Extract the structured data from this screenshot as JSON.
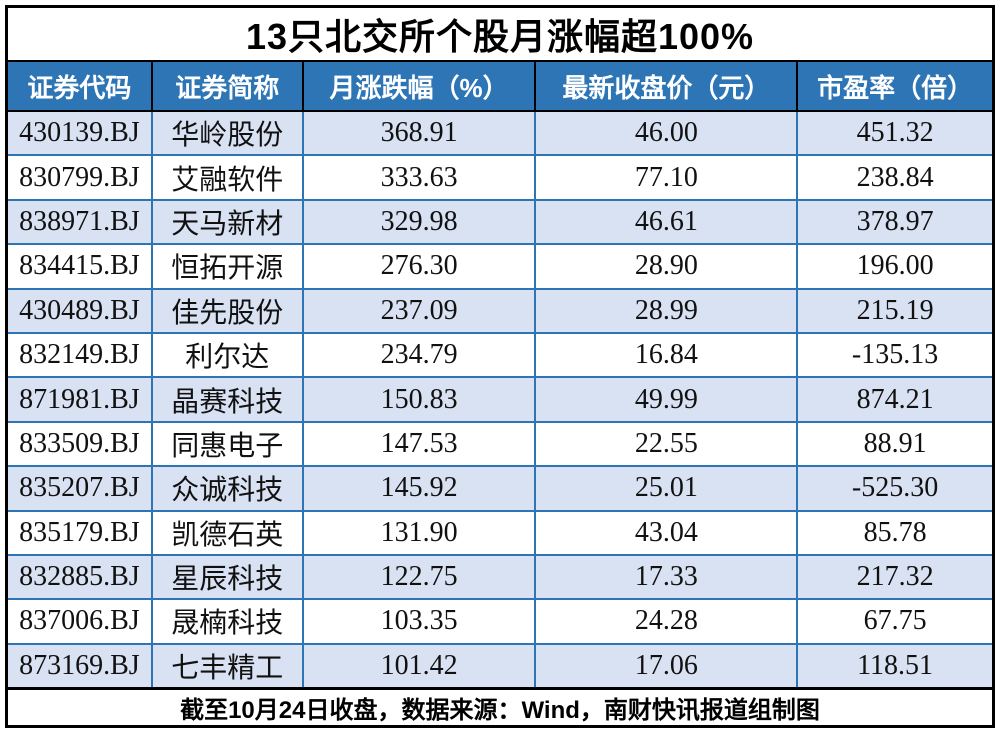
{
  "chart_data": {
    "type": "table",
    "title": "13只北交所个股月涨幅超100%",
    "footnote": "截至10月24日收盘，数据来源：Wind，南财快讯报道组制图",
    "columns": [
      "证券代码",
      "证券简称",
      "月涨跌幅（%）",
      "最新收盘价（元）",
      "市盈率（倍）"
    ],
    "rows": [
      {
        "code": "430139.BJ",
        "name": "华岭股份",
        "change": "368.91",
        "price": "46.00",
        "pe": "451.32"
      },
      {
        "code": "830799.BJ",
        "name": "艾融软件",
        "change": "333.63",
        "price": "77.10",
        "pe": "238.84"
      },
      {
        "code": "838971.BJ",
        "name": "天马新材",
        "change": "329.98",
        "price": "46.61",
        "pe": "378.97"
      },
      {
        "code": "834415.BJ",
        "name": "恒拓开源",
        "change": "276.30",
        "price": "28.90",
        "pe": "196.00"
      },
      {
        "code": "430489.BJ",
        "name": "佳先股份",
        "change": "237.09",
        "price": "28.99",
        "pe": "215.19"
      },
      {
        "code": "832149.BJ",
        "name": "利尔达",
        "change": "234.79",
        "price": "16.84",
        "pe": "-135.13"
      },
      {
        "code": "871981.BJ",
        "name": "晶赛科技",
        "change": "150.83",
        "price": "49.99",
        "pe": "874.21"
      },
      {
        "code": "833509.BJ",
        "name": "同惠电子",
        "change": "147.53",
        "price": "22.55",
        "pe": "88.91"
      },
      {
        "code": "835207.BJ",
        "name": "众诚科技",
        "change": "145.92",
        "price": "25.01",
        "pe": "-525.30"
      },
      {
        "code": "835179.BJ",
        "name": "凯德石英",
        "change": "131.90",
        "price": "43.04",
        "pe": "85.78"
      },
      {
        "code": "832885.BJ",
        "name": "星辰科技",
        "change": "122.75",
        "price": "17.33",
        "pe": "217.32"
      },
      {
        "code": "837006.BJ",
        "name": "晟楠科技",
        "change": "103.35",
        "price": "24.28",
        "pe": "67.75"
      },
      {
        "code": "873169.BJ",
        "name": "七丰精工",
        "change": "101.42",
        "price": "17.06",
        "pe": "118.51"
      }
    ],
    "colors": {
      "header_bg": "#2E75B6",
      "header_text": "#FFFFFF",
      "stripe_bg": "#D9E2F3",
      "grid_border": "#2E75B6",
      "frame_border": "#000000"
    },
    "layout_hints": {
      "striped_rows": "odd",
      "alignment": "center"
    }
  }
}
